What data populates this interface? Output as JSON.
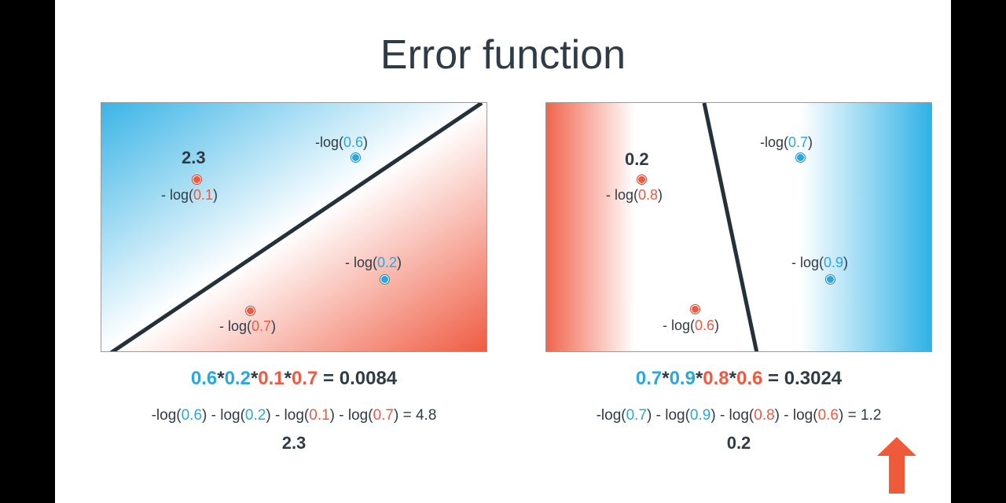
{
  "title": "Error function",
  "colors": {
    "blue": "#2aa7dc",
    "red": "#ec5a43",
    "text": "#2f3b45",
    "line": "#24313a"
  },
  "left_panel": {
    "score": "2.3",
    "points": [
      {
        "color": "red",
        "prefix": "- log(",
        "value": "0.1",
        "suffix": ")"
      },
      {
        "color": "blue",
        "prefix": "-log(",
        "value": "0.6",
        "suffix": ")"
      },
      {
        "color": "blue",
        "prefix": "- log(",
        "value": "0.2",
        "suffix": ")"
      },
      {
        "color": "red",
        "prefix": "- log(",
        "value": "0.7",
        "suffix": ")"
      }
    ],
    "product": {
      "f1": "0.6",
      "f2": "0.2",
      "f3": "0.1",
      "f4": "0.7",
      "result": "0.0084"
    },
    "logsum": {
      "t1": "0.6",
      "t2": "0.2",
      "t3": "0.1",
      "t4": "0.7",
      "result": "4.8"
    },
    "total": "2.3"
  },
  "right_panel": {
    "score": "0.2",
    "points": [
      {
        "color": "red",
        "prefix": "- log(",
        "value": "0.8",
        "suffix": ")"
      },
      {
        "color": "blue",
        "prefix": "-log(",
        "value": "0.7",
        "suffix": ")"
      },
      {
        "color": "blue",
        "prefix": "- log(",
        "value": "0.9",
        "suffix": ")"
      },
      {
        "color": "red",
        "prefix": "- log(",
        "value": "0.6",
        "suffix": ")"
      }
    ],
    "product": {
      "f1": "0.7",
      "f2": "0.9",
      "f3": "0.8",
      "f4": "0.6",
      "result": "0.3024"
    },
    "logsum": {
      "t1": "0.7",
      "t2": "0.9",
      "t3": "0.8",
      "t4": "0.6",
      "result": "1.2"
    },
    "total": "0.2"
  },
  "arrow_icon": "up-arrow-icon"
}
